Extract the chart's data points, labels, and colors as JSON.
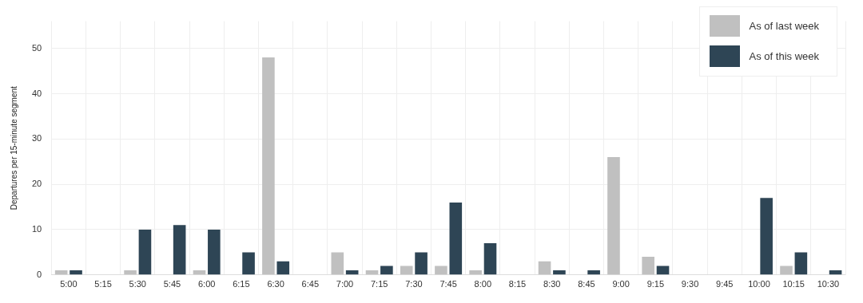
{
  "chart_data": {
    "type": "bar",
    "ylabel": "Departures per 15-minute segment",
    "categories": [
      "5:00",
      "5:15",
      "5:30",
      "5:45",
      "6:00",
      "6:15",
      "6:30",
      "6:45",
      "7:00",
      "7:15",
      "7:30",
      "7:45",
      "8:00",
      "8:15",
      "8:30",
      "8:45",
      "9:00",
      "9:15",
      "9:30",
      "9:45",
      "10:00",
      "10:15",
      "10:30"
    ],
    "series": [
      {
        "name": "As of last week",
        "color": "#c0c0c0",
        "values": [
          1,
          0,
          1,
          0,
          1,
          0,
          48,
          0,
          5,
          1,
          2,
          2,
          1,
          0,
          3,
          0,
          26,
          4,
          0,
          0,
          0,
          2,
          0
        ]
      },
      {
        "name": "As of this week",
        "color": "#2e4555",
        "values": [
          1,
          0,
          10,
          11,
          10,
          5,
          3,
          0,
          1,
          2,
          5,
          16,
          7,
          0,
          1,
          1,
          0,
          2,
          0,
          0,
          17,
          5,
          1
        ]
      }
    ],
    "ylim": [
      0,
      56
    ],
    "yticks": [
      0,
      10,
      20,
      30,
      40,
      50
    ],
    "grid": true,
    "legend": "top right"
  }
}
